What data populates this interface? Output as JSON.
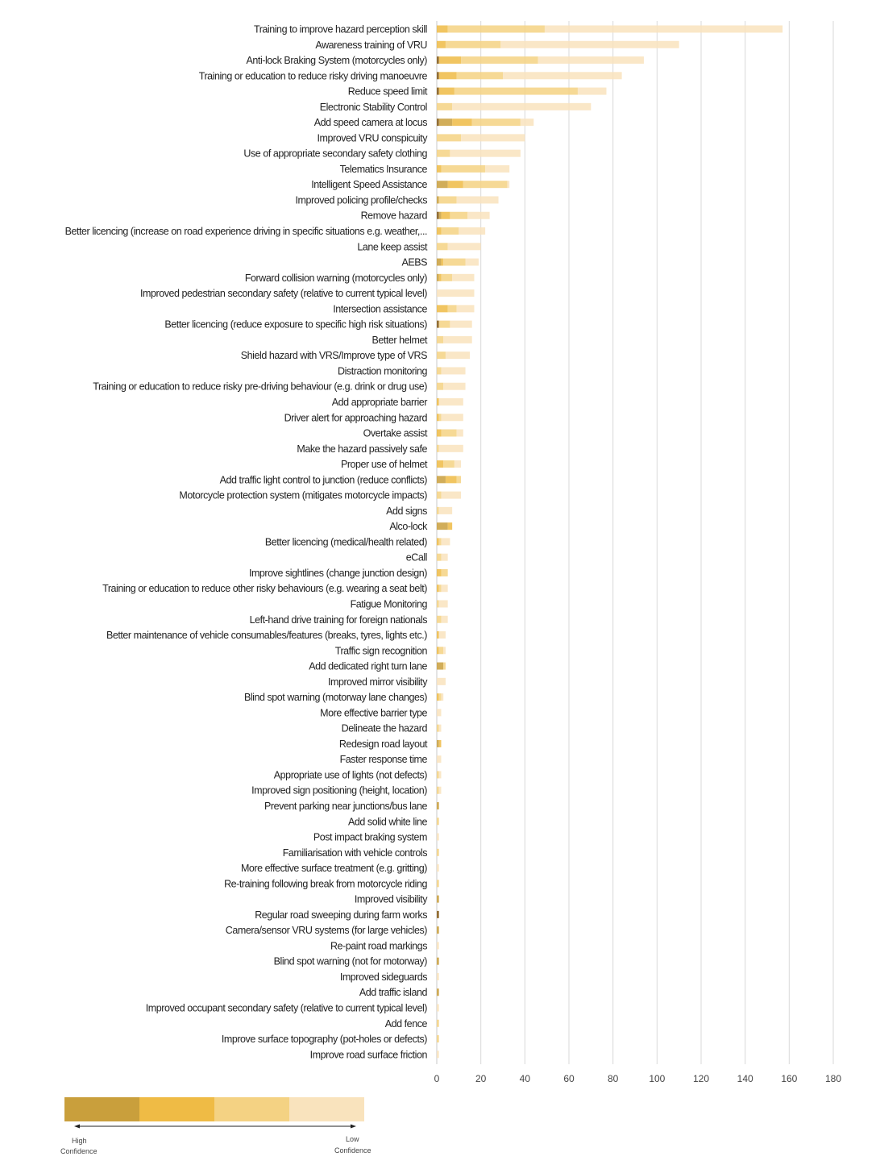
{
  "chart_data": {
    "type": "bar",
    "orientation": "horizontal",
    "stacked": true,
    "title": "",
    "xlabel": "",
    "ylabel": "",
    "xlim": [
      0,
      180
    ],
    "xticks": [
      "0",
      "20",
      "40",
      "60",
      "80",
      "100",
      "120",
      "140",
      "160",
      "180"
    ],
    "grid": "vertical",
    "series_colors": [
      "#8a6020",
      "#c99f3c",
      "#efbb45",
      "#f4d283",
      "#f9e3bd"
    ],
    "categories": [
      "Training to improve hazard perception skill",
      "Awareness training of VRU",
      "Anti-lock Braking System (motorcycles only)",
      "Training or education to reduce risky driving manoeuvre",
      "Reduce speed limit",
      "Electronic Stability Control",
      "Add speed camera at locus",
      "Improved VRU conspicuity",
      "Use of appropriate secondary safety clothing",
      "Telematics Insurance",
      "Intelligent Speed Assistance",
      "Improved policing profile/checks",
      "Remove hazard",
      "Better licencing (increase on road experience driving in specific situations e.g. weather,...",
      "Lane keep assist",
      "AEBS",
      "Forward collision warning (motorcycles only)",
      "Improved pedestrian secondary safety (relative to current typical level)",
      "Intersection assistance",
      "Better licencing (reduce exposure to specific high risk situations)",
      "Better helmet",
      "Shield hazard with VRS/Improve type of VRS",
      "Distraction monitoring",
      "Training or education to reduce risky pre-driving behaviour (e.g. drink or drug use)",
      "Add appropriate barrier",
      "Driver alert for approaching hazard",
      "Overtake assist",
      "Make the hazard passively safe",
      "Proper use of helmet",
      "Add traffic light control to junction (reduce conflicts)",
      "Motorcycle protection system (mitigates motorcycle impacts)",
      "Add signs",
      "Alco-lock",
      "Better licencing (medical/health related)",
      "eCall",
      "Improve sightlines (change junction design)",
      "Training or education to reduce other risky behaviours (e.g. wearing a seat belt)",
      "Fatigue Monitoring",
      "Left-hand drive training for foreign nationals",
      "Better maintenance of vehicle consumables/features (breaks, tyres, lights etc.)",
      "Traffic sign recognition",
      "Add dedicated right turn lane",
      "Improved mirror visibility",
      "Blind spot warning (motorway lane changes)",
      "More effective barrier type",
      "Delineate the hazard",
      "Redesign road layout",
      "Faster response time",
      "Appropriate use of lights (not defects)",
      "Improved sign positioning (height, location)",
      "Prevent parking near junctions/bus lane",
      "Add solid white line",
      "Post impact braking system",
      "Familiarisation with vehicle controls",
      "More effective surface treatment (e.g. gritting)",
      "Re-training following break from motorcycle riding",
      "Improved visibility",
      "Regular road sweeping during farm works",
      "Camera/sensor VRU systems (for large vehicles)",
      "Re-paint road markings",
      "Blind spot warning (not for motorway)",
      "Improved sideguards",
      "Add traffic island",
      "Improved occupant secondary safety (relative to current typical level)",
      "Add fence",
      "Improve surface topography (pot-holes or defects)",
      "Improve road surface friction"
    ],
    "values": [
      [
        0,
        0,
        5,
        44,
        108
      ],
      [
        0,
        0,
        4,
        25,
        81
      ],
      [
        1,
        0,
        10,
        35,
        48
      ],
      [
        1,
        0,
        8,
        21,
        54
      ],
      [
        1,
        0,
        7,
        56,
        13
      ],
      [
        0,
        0,
        0,
        7,
        63
      ],
      [
        1,
        6,
        9,
        22,
        6
      ],
      [
        0,
        0,
        0,
        11,
        29
      ],
      [
        0,
        0,
        0,
        6,
        32
      ],
      [
        0,
        0,
        2,
        20,
        11
      ],
      [
        0,
        5,
        7,
        20,
        1
      ],
      [
        0,
        1,
        0,
        8,
        19
      ],
      [
        1,
        1,
        4,
        8,
        10
      ],
      [
        0,
        0,
        2,
        8,
        12
      ],
      [
        0,
        0,
        0,
        5,
        15
      ],
      [
        0,
        2,
        1,
        10,
        6
      ],
      [
        0,
        1,
        1,
        5,
        10
      ],
      [
        0,
        0,
        0,
        0,
        17
      ],
      [
        0,
        0,
        5,
        4,
        8
      ],
      [
        1,
        0,
        0,
        5,
        10
      ],
      [
        0,
        0,
        0,
        3,
        13
      ],
      [
        0,
        0,
        0,
        4,
        11
      ],
      [
        0,
        0,
        0,
        2,
        11
      ],
      [
        0,
        0,
        0,
        3,
        10
      ],
      [
        0,
        0,
        1,
        0,
        11
      ],
      [
        0,
        0,
        1,
        1,
        10
      ],
      [
        0,
        0,
        2,
        7,
        3
      ],
      [
        0,
        0,
        0,
        1,
        11
      ],
      [
        0,
        0,
        3,
        5,
        3
      ],
      [
        0,
        4,
        5,
        2,
        0
      ],
      [
        0,
        0,
        0,
        2,
        9
      ],
      [
        0,
        0,
        0,
        1,
        6
      ],
      [
        0,
        5,
        2,
        0,
        0
      ],
      [
        0,
        0,
        1,
        1,
        4
      ],
      [
        0,
        0,
        0,
        2,
        3
      ],
      [
        0,
        0,
        2,
        3,
        0
      ],
      [
        0,
        0,
        1,
        1,
        3
      ],
      [
        0,
        0,
        0,
        1,
        4
      ],
      [
        0,
        0,
        0,
        2,
        3
      ],
      [
        0,
        0,
        1,
        0,
        3
      ],
      [
        0,
        0,
        1,
        2,
        1
      ],
      [
        0,
        3,
        0,
        1,
        0
      ],
      [
        0,
        0,
        0,
        0,
        4
      ],
      [
        0,
        0,
        1,
        1,
        1
      ],
      [
        0,
        0,
        0,
        0,
        2
      ],
      [
        0,
        0,
        0,
        1,
        1
      ],
      [
        0,
        1,
        1,
        0,
        0
      ],
      [
        0,
        0,
        0,
        0,
        2
      ],
      [
        0,
        0,
        0,
        1,
        1
      ],
      [
        0,
        0,
        0,
        1,
        1
      ],
      [
        0,
        1,
        0,
        0,
        0
      ],
      [
        0,
        0,
        0,
        1,
        0
      ],
      [
        0,
        0,
        0,
        0,
        1
      ],
      [
        0,
        0,
        0,
        1,
        0
      ],
      [
        0,
        0,
        0,
        0,
        1
      ],
      [
        0,
        0,
        0,
        1,
        0
      ],
      [
        0,
        1,
        0,
        0,
        0
      ],
      [
        1,
        0,
        0,
        0,
        0
      ],
      [
        0,
        1,
        0,
        0,
        0
      ],
      [
        0,
        0,
        0,
        0,
        1
      ],
      [
        0,
        1,
        0,
        0,
        0
      ],
      [
        0,
        0,
        0,
        0,
        1
      ],
      [
        0,
        1,
        0,
        0,
        0
      ],
      [
        0,
        0,
        0,
        0,
        1
      ],
      [
        0,
        0,
        0,
        1,
        0
      ],
      [
        0,
        0,
        0,
        1,
        0
      ],
      [
        0,
        0,
        0,
        0,
        1
      ]
    ],
    "legend": {
      "placement": "bottom-left",
      "colors": [
        "#c99f3c",
        "#efbb45",
        "#f4d283",
        "#f9e3bd"
      ],
      "high_label_1": "High",
      "high_label_2": "Confidence",
      "low_label_1": "Low",
      "low_label_2": "Confidence"
    }
  }
}
